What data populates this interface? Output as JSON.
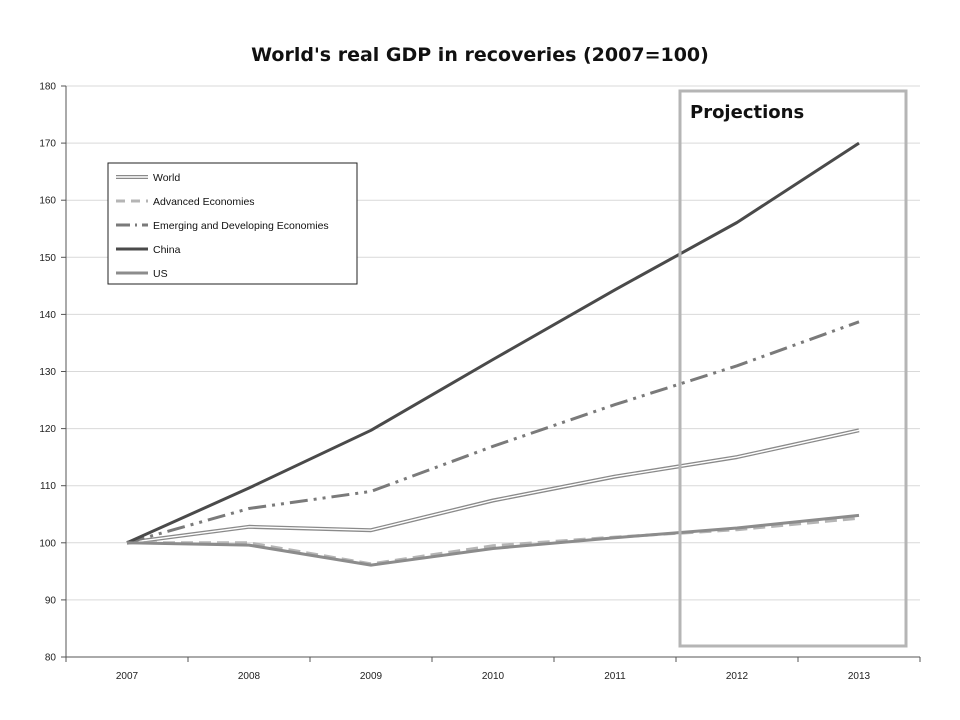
{
  "chart_data": {
    "type": "line",
    "title": "World's real GDP in recoveries (2007=100)",
    "annotation": "Projections",
    "projection_range": [
      "2012",
      "2013"
    ],
    "categories": [
      "2007",
      "2008",
      "2009",
      "2010",
      "2011",
      "2012",
      "2013"
    ],
    "ylim": [
      80,
      180
    ],
    "yticks": [
      80,
      90,
      100,
      110,
      120,
      130,
      140,
      150,
      160,
      170,
      180
    ],
    "grid": true,
    "legend_position": "top-left",
    "series": [
      {
        "name": "World",
        "values": [
          100,
          102.8,
          102.2,
          107.4,
          111.6,
          115.0,
          119.7
        ],
        "color": "#8a8a8a",
        "style": "double"
      },
      {
        "name": "Advanced Economies",
        "values": [
          100,
          100.0,
          96.3,
          99.5,
          101.0,
          102.3,
          104.3
        ],
        "color": "#b5b5b5",
        "style": "dash"
      },
      {
        "name": "Emerging and Developing Economies",
        "values": [
          100,
          106.0,
          109.0,
          116.9,
          124.2,
          131.0,
          138.7
        ],
        "color": "#7a7a7a",
        "style": "dashdotdot"
      },
      {
        "name": "China",
        "values": [
          100,
          109.6,
          119.7,
          132.1,
          144.3,
          156.1,
          170.0
        ],
        "color": "#4a4a4a",
        "style": "solid"
      },
      {
        "name": "US",
        "values": [
          100,
          99.6,
          96.1,
          99.0,
          100.9,
          102.6,
          104.8
        ],
        "color": "#8c8c8c",
        "style": "solid"
      }
    ]
  }
}
